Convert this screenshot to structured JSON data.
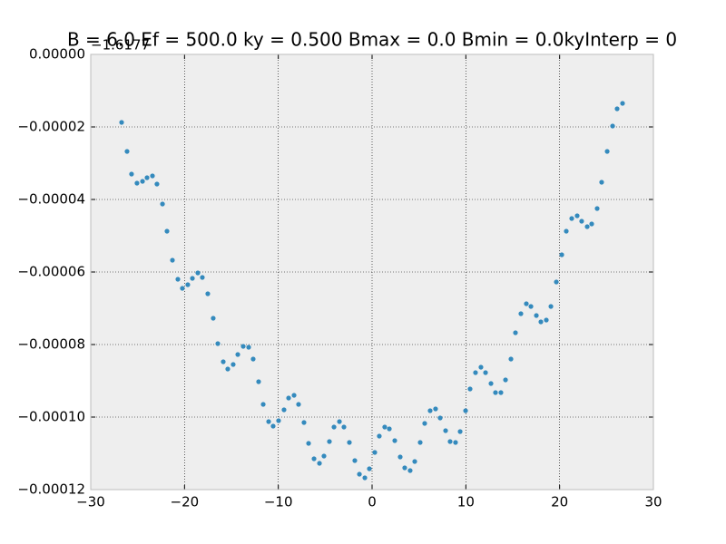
{
  "chart_data": {
    "type": "scatter",
    "title": "B = 6.0 Ef = 500.0 ky = 0.500 Bmax = 0.0 Bmin = 0.0kyInterp = 0",
    "offset_text": "−1.6177",
    "color": "#348abd",
    "grid": true,
    "xlim": [
      -30,
      30
    ],
    "ylim": [
      -0.00012,
      0
    ],
    "xticks": [
      {
        "value": -30,
        "label": "−30"
      },
      {
        "value": -20,
        "label": "−20"
      },
      {
        "value": -10,
        "label": "−10"
      },
      0,
      10,
      20,
      30
    ],
    "yticks": [
      {
        "value": 0,
        "label": "0.00000"
      },
      {
        "value": -2e-05,
        "label": "−0.00002"
      },
      {
        "value": -4e-05,
        "label": "−0.00004"
      },
      {
        "value": -6e-05,
        "label": "−0.00006"
      },
      {
        "value": -8e-05,
        "label": "−0.00008"
      },
      {
        "value": -0.0001,
        "label": "−0.00010"
      },
      {
        "value": -0.00012,
        "label": "−0.00012"
      }
    ],
    "x": [
      -26.71,
      -26.13,
      -25.65,
      -25.07,
      -24.48,
      -24.0,
      -23.42,
      -22.94,
      -22.35,
      -21.87,
      -21.29,
      -20.71,
      -20.23,
      -19.65,
      -19.16,
      -18.58,
      -18.1,
      -17.52,
      -16.94,
      -16.45,
      -15.87,
      -15.39,
      -14.81,
      -14.32,
      -13.74,
      -13.16,
      -12.68,
      -12.1,
      -11.61,
      -11.03,
      -10.55,
      -9.97,
      -9.39,
      -8.9,
      -8.32,
      -7.84,
      -7.26,
      -6.77,
      -6.19,
      -5.61,
      -5.13,
      -4.55,
      -4.06,
      -3.48,
      -3.0,
      -2.42,
      -1.84,
      -1.35,
      -0.77,
      -0.29,
      0.29,
      0.77,
      1.35,
      1.84,
      2.42,
      3.0,
      3.48,
      4.06,
      4.55,
      5.13,
      5.61,
      6.19,
      6.77,
      7.26,
      7.84,
      8.32,
      8.9,
      9.39,
      9.97,
      10.45,
      11.03,
      11.61,
      12.1,
      12.68,
      13.16,
      13.74,
      14.23,
      14.81,
      15.29,
      15.87,
      16.45,
      16.94,
      17.52,
      18.0,
      18.58,
      19.07,
      19.65,
      20.23,
      20.71,
      21.29,
      21.87,
      22.35,
      22.94,
      23.42,
      24.0,
      24.48,
      25.07,
      25.65,
      26.13,
      26.71
    ],
    "values": [
      -1.875e-05,
      -2.675e-05,
      -3.3e-05,
      -3.55e-05,
      -3.5e-05,
      -3.4e-05,
      -3.35e-05,
      -3.575e-05,
      -4.125e-05,
      -4.875e-05,
      -5.675e-05,
      -6.2e-05,
      -6.45e-05,
      -6.35e-05,
      -6.175e-05,
      -6.025e-05,
      -6.15e-05,
      -6.6e-05,
      -7.275e-05,
      -7.975e-05,
      -8.475e-05,
      -8.675e-05,
      -8.55e-05,
      -8.275e-05,
      -8.05e-05,
      -8.075e-05,
      -8.4e-05,
      -9.025e-05,
      -9.65e-05,
      -0.00010125,
      -0.0001025,
      -0.000101,
      -9.8e-05,
      -9.475e-05,
      -9.4e-05,
      -9.65e-05,
      -0.0001015,
      -0.00010725,
      -0.0001115,
      -0.00011275,
      -0.00011075,
      -0.00010675,
      -0.00010275,
      -0.00010125,
      -0.00010275,
      -0.000107,
      -0.000112,
      -0.00011575,
      -0.00011675,
      -0.00011425,
      -0.00010975,
      -0.00010525,
      -0.00010275,
      -0.00010325,
      -0.0001065,
      -0.000111,
      -0.000114,
      -0.00011475,
      -0.00011225,
      -0.000107,
      -0.00010175,
      -9.825e-05,
      -9.775e-05,
      -0.00010025,
      -0.00010375,
      -0.00010675,
      -0.000107,
      -0.000104,
      -9.825e-05,
      -9.225e-05,
      -8.775e-05,
      -8.625e-05,
      -8.775e-05,
      -9.075e-05,
      -9.325e-05,
      -9.325e-05,
      -8.975e-05,
      -8.4e-05,
      -7.675e-05,
      -7.15e-05,
      -6.875e-05,
      -6.95e-05,
      -7.2e-05,
      -7.375e-05,
      -7.325e-05,
      -6.95e-05,
      -6.275e-05,
      -5.525e-05,
      -4.875e-05,
      -4.525e-05,
      -4.45e-05,
      -4.6e-05,
      -4.75e-05,
      -4.675e-05,
      -4.25e-05,
      -3.525e-05,
      -2.675e-05,
      -1.975e-05,
      -1.5e-05,
      -1.35e-05
    ]
  }
}
